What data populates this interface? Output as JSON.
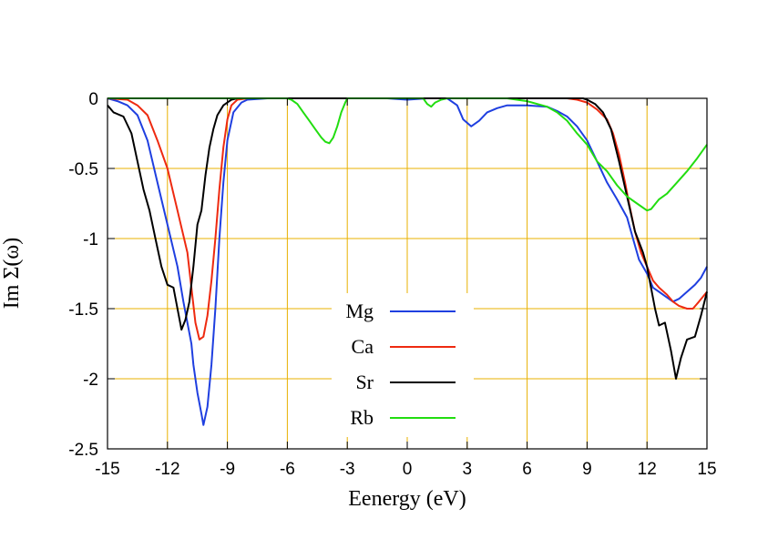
{
  "chart_data": {
    "type": "line",
    "title": "",
    "xlabel": "Eenergy (eV)",
    "ylabel": "Im Σ(ω)",
    "xlim": [
      -15,
      15
    ],
    "ylim": [
      -2.5,
      0
    ],
    "xticks": [
      -15,
      -12,
      -9,
      -6,
      -3,
      0,
      3,
      6,
      9,
      12,
      15
    ],
    "yticks": [
      0,
      -0.5,
      -1,
      -1.5,
      -2,
      -2.5
    ],
    "xtick_labels": [
      "-15",
      "-12",
      "-9",
      "-6",
      "-3",
      "0",
      "3",
      "6",
      "9",
      "12",
      "15"
    ],
    "ytick_labels": [
      "0",
      "-0.5",
      "-1",
      "-1.5",
      "-2",
      "-2.5"
    ],
    "grid": true,
    "grid_color": "#e8b000",
    "legend_position": "lower-center",
    "series": [
      {
        "name": "Mg",
        "color": "#1f3fe0",
        "points": [
          [
            -15,
            0
          ],
          [
            -14.5,
            -0.02
          ],
          [
            -14,
            -0.05
          ],
          [
            -13.5,
            -0.12
          ],
          [
            -13,
            -0.3
          ],
          [
            -12.5,
            -0.6
          ],
          [
            -12,
            -0.9
          ],
          [
            -11.5,
            -1.2
          ],
          [
            -11.2,
            -1.45
          ],
          [
            -11,
            -1.6
          ],
          [
            -10.8,
            -1.75
          ],
          [
            -10.7,
            -1.9
          ],
          [
            -10.5,
            -2.1
          ],
          [
            -10.3,
            -2.25
          ],
          [
            -10.2,
            -2.33
          ],
          [
            -10,
            -2.2
          ],
          [
            -9.8,
            -1.9
          ],
          [
            -9.6,
            -1.5
          ],
          [
            -9.4,
            -1.0
          ],
          [
            -9.2,
            -0.6
          ],
          [
            -9,
            -0.3
          ],
          [
            -8.7,
            -0.1
          ],
          [
            -8.3,
            -0.03
          ],
          [
            -8,
            -0.01
          ],
          [
            -7,
            0
          ],
          [
            -6,
            0
          ],
          [
            -5,
            0
          ],
          [
            -4,
            0
          ],
          [
            -3,
            0
          ],
          [
            -2,
            0
          ],
          [
            -1,
            0
          ],
          [
            0,
            -0.01
          ],
          [
            1,
            0
          ],
          [
            2,
            0
          ],
          [
            2.5,
            -0.05
          ],
          [
            2.8,
            -0.15
          ],
          [
            3.2,
            -0.2
          ],
          [
            3.6,
            -0.16
          ],
          [
            4,
            -0.1
          ],
          [
            4.5,
            -0.07
          ],
          [
            5,
            -0.05
          ],
          [
            6,
            -0.05
          ],
          [
            7,
            -0.06
          ],
          [
            7.5,
            -0.09
          ],
          [
            8,
            -0.13
          ],
          [
            8.5,
            -0.2
          ],
          [
            9,
            -0.3
          ],
          [
            9.5,
            -0.45
          ],
          [
            10,
            -0.6
          ],
          [
            10.5,
            -0.72
          ],
          [
            11,
            -0.85
          ],
          [
            11.3,
            -1.0
          ],
          [
            11.6,
            -1.15
          ],
          [
            12,
            -1.25
          ],
          [
            12.3,
            -1.35
          ],
          [
            12.6,
            -1.38
          ],
          [
            13,
            -1.42
          ],
          [
            13.3,
            -1.45
          ],
          [
            13.6,
            -1.43
          ],
          [
            14,
            -1.38
          ],
          [
            14.4,
            -1.33
          ],
          [
            14.7,
            -1.28
          ],
          [
            15,
            -1.2
          ]
        ]
      },
      {
        "name": "Ca",
        "color": "#ee2a10",
        "points": [
          [
            -15,
            0
          ],
          [
            -14,
            -0.01
          ],
          [
            -13.5,
            -0.05
          ],
          [
            -13,
            -0.12
          ],
          [
            -12.5,
            -0.3
          ],
          [
            -12,
            -0.5
          ],
          [
            -11.5,
            -0.8
          ],
          [
            -11,
            -1.1
          ],
          [
            -10.8,
            -1.35
          ],
          [
            -10.6,
            -1.6
          ],
          [
            -10.4,
            -1.72
          ],
          [
            -10.2,
            -1.7
          ],
          [
            -10,
            -1.55
          ],
          [
            -9.8,
            -1.3
          ],
          [
            -9.6,
            -1.0
          ],
          [
            -9.4,
            -0.65
          ],
          [
            -9.2,
            -0.35
          ],
          [
            -9,
            -0.15
          ],
          [
            -8.8,
            -0.05
          ],
          [
            -8.5,
            -0.01
          ],
          [
            -8,
            0
          ],
          [
            -6,
            0
          ],
          [
            -4,
            0
          ],
          [
            -2,
            0
          ],
          [
            0,
            0
          ],
          [
            2,
            0
          ],
          [
            4,
            0
          ],
          [
            6,
            0
          ],
          [
            8,
            0
          ],
          [
            8.5,
            -0.01
          ],
          [
            9,
            -0.03
          ],
          [
            9.5,
            -0.08
          ],
          [
            10,
            -0.15
          ],
          [
            10.3,
            -0.25
          ],
          [
            10.6,
            -0.4
          ],
          [
            10.9,
            -0.6
          ],
          [
            11.1,
            -0.75
          ],
          [
            11.4,
            -0.95
          ],
          [
            11.7,
            -1.1
          ],
          [
            12,
            -1.2
          ],
          [
            12.3,
            -1.3
          ],
          [
            12.6,
            -1.35
          ],
          [
            13,
            -1.4
          ],
          [
            13.3,
            -1.45
          ],
          [
            13.6,
            -1.48
          ],
          [
            14,
            -1.5
          ],
          [
            14.3,
            -1.5
          ],
          [
            14.6,
            -1.45
          ],
          [
            15,
            -1.38
          ]
        ]
      },
      {
        "name": "Sr",
        "color": "#000000",
        "points": [
          [
            -15,
            -0.05
          ],
          [
            -14.7,
            -0.1
          ],
          [
            -14.2,
            -0.13
          ],
          [
            -13.8,
            -0.25
          ],
          [
            -13.5,
            -0.45
          ],
          [
            -13.2,
            -0.65
          ],
          [
            -12.9,
            -0.8
          ],
          [
            -12.6,
            -1.0
          ],
          [
            -12.3,
            -1.2
          ],
          [
            -12,
            -1.33
          ],
          [
            -11.7,
            -1.35
          ],
          [
            -11.5,
            -1.5
          ],
          [
            -11.3,
            -1.65
          ],
          [
            -11.1,
            -1.58
          ],
          [
            -10.9,
            -1.45
          ],
          [
            -10.7,
            -1.2
          ],
          [
            -10.5,
            -0.9
          ],
          [
            -10.3,
            -0.8
          ],
          [
            -10.1,
            -0.55
          ],
          [
            -9.9,
            -0.35
          ],
          [
            -9.7,
            -0.22
          ],
          [
            -9.5,
            -0.12
          ],
          [
            -9.2,
            -0.05
          ],
          [
            -9,
            -0.03
          ],
          [
            -8.8,
            -0.01
          ],
          [
            -8.5,
            0
          ],
          [
            -6,
            0
          ],
          [
            -4,
            0
          ],
          [
            -2,
            0
          ],
          [
            0,
            0
          ],
          [
            2,
            0
          ],
          [
            4,
            0
          ],
          [
            6,
            0
          ],
          [
            8,
            0
          ],
          [
            8.8,
            0
          ],
          [
            9,
            -0.01
          ],
          [
            9.4,
            -0.04
          ],
          [
            9.8,
            -0.1
          ],
          [
            10.2,
            -0.22
          ],
          [
            10.6,
            -0.45
          ],
          [
            11,
            -0.7
          ],
          [
            11.4,
            -0.95
          ],
          [
            11.8,
            -1.1
          ],
          [
            12,
            -1.2
          ],
          [
            12.2,
            -1.35
          ],
          [
            12.4,
            -1.5
          ],
          [
            12.6,
            -1.62
          ],
          [
            12.9,
            -1.6
          ],
          [
            13.2,
            -1.8
          ],
          [
            13.45,
            -2.0
          ],
          [
            13.7,
            -1.85
          ],
          [
            14,
            -1.72
          ],
          [
            14.4,
            -1.7
          ],
          [
            14.7,
            -1.55
          ],
          [
            15,
            -1.38
          ]
        ]
      },
      {
        "name": "Rb",
        "color": "#22dd10",
        "points": [
          [
            -15,
            0
          ],
          [
            -10,
            0
          ],
          [
            -8,
            0
          ],
          [
            -6,
            0
          ],
          [
            -5.8,
            -0.01
          ],
          [
            -5.5,
            -0.04
          ],
          [
            -5.2,
            -0.1
          ],
          [
            -4.9,
            -0.16
          ],
          [
            -4.6,
            -0.22
          ],
          [
            -4.3,
            -0.28
          ],
          [
            -4.1,
            -0.31
          ],
          [
            -3.9,
            -0.32
          ],
          [
            -3.7,
            -0.28
          ],
          [
            -3.5,
            -0.2
          ],
          [
            -3.3,
            -0.1
          ],
          [
            -3.1,
            -0.03
          ],
          [
            -3,
            0
          ],
          [
            -1,
            0
          ],
          [
            0,
            0
          ],
          [
            0.8,
            0
          ],
          [
            1,
            -0.04
          ],
          [
            1.2,
            -0.06
          ],
          [
            1.4,
            -0.03
          ],
          [
            1.7,
            -0.01
          ],
          [
            2,
            0
          ],
          [
            3,
            0
          ],
          [
            5,
            0
          ],
          [
            6,
            -0.02
          ],
          [
            7,
            -0.06
          ],
          [
            7.5,
            -0.1
          ],
          [
            8,
            -0.16
          ],
          [
            8.5,
            -0.25
          ],
          [
            9,
            -0.33
          ],
          [
            9.5,
            -0.45
          ],
          [
            10,
            -0.52
          ],
          [
            10.5,
            -0.62
          ],
          [
            11,
            -0.7
          ],
          [
            11.5,
            -0.75
          ],
          [
            12,
            -0.8
          ],
          [
            12.2,
            -0.79
          ],
          [
            12.6,
            -0.72
          ],
          [
            13,
            -0.68
          ],
          [
            13.5,
            -0.6
          ],
          [
            14,
            -0.52
          ],
          [
            14.5,
            -0.43
          ],
          [
            15,
            -0.33
          ]
        ]
      }
    ]
  }
}
